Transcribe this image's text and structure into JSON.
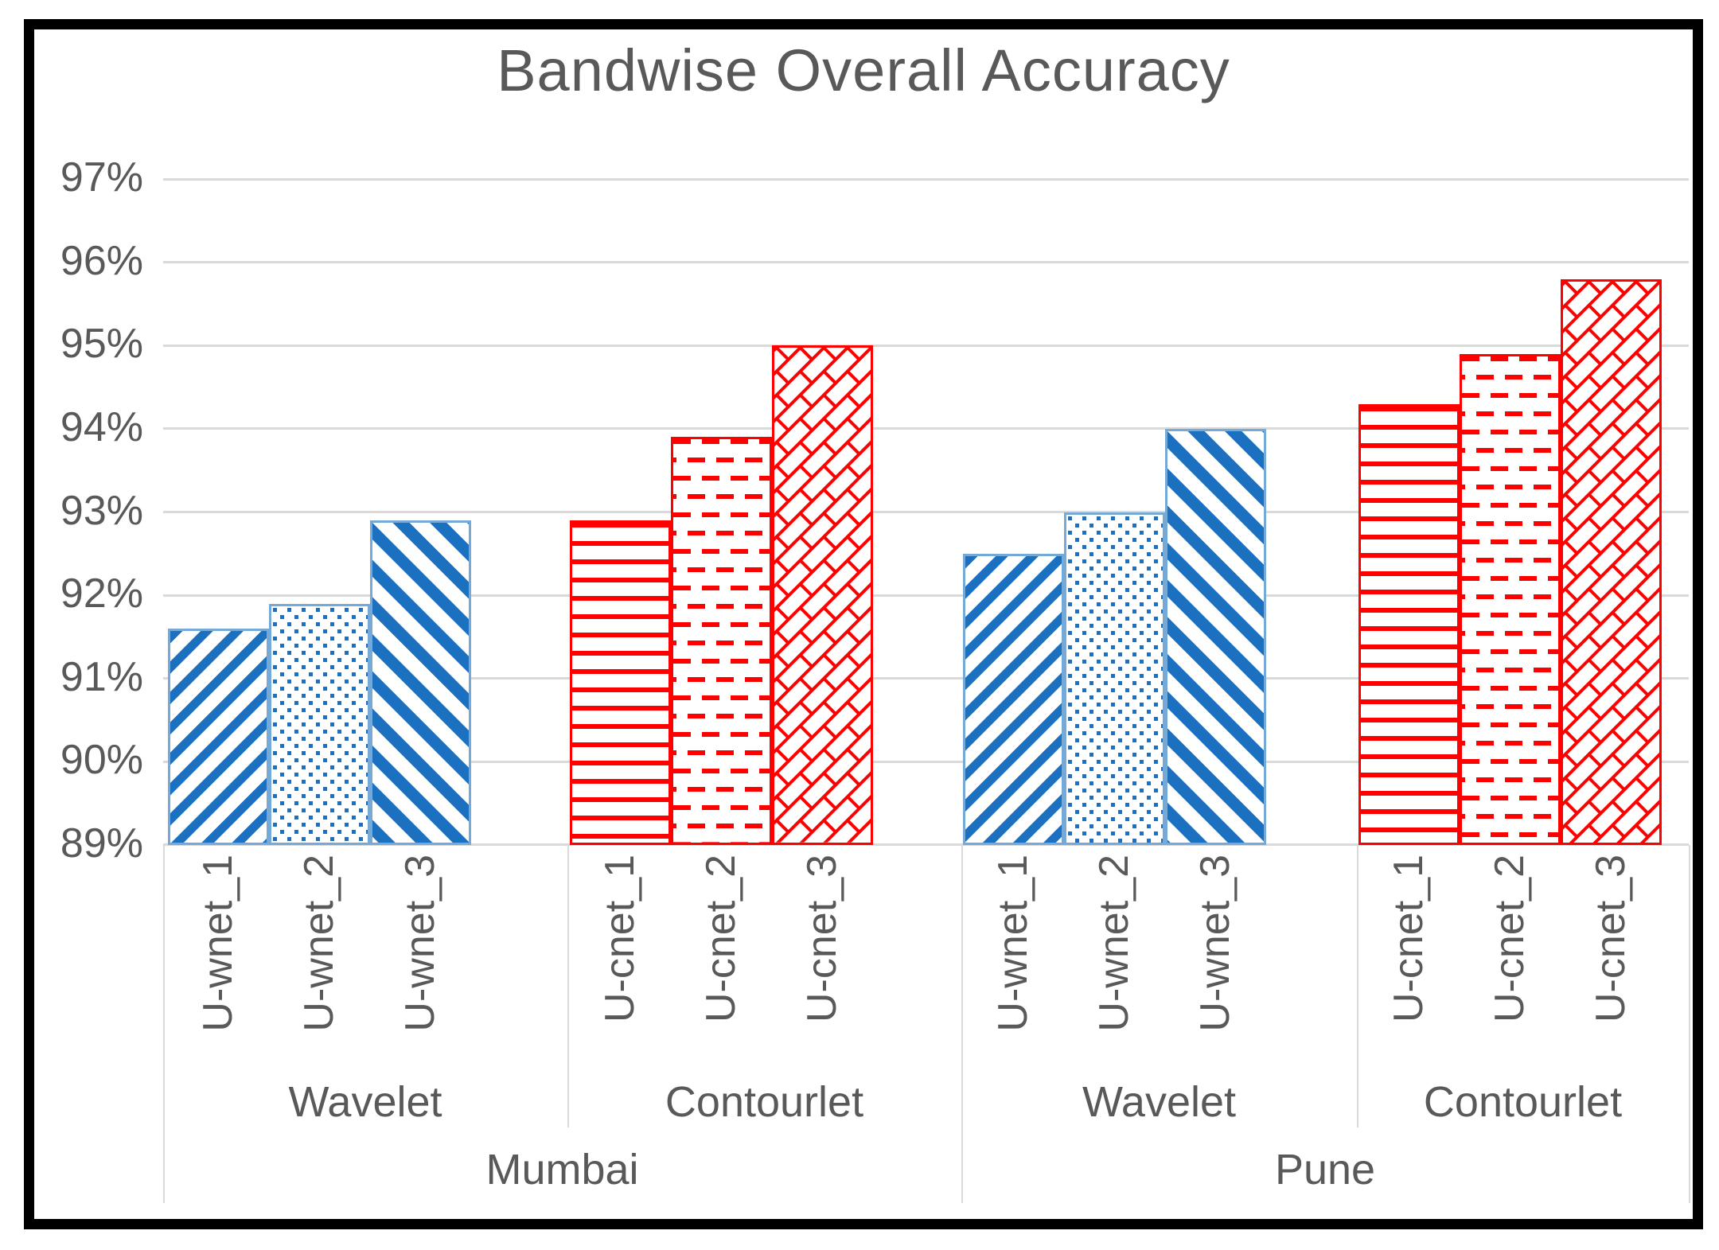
{
  "chart_data": {
    "type": "bar",
    "title": "Bandwise Overall Accuracy",
    "xlabel": "",
    "ylabel": "",
    "ylim": [
      89,
      97.8
    ],
    "grid": true,
    "legend": "none",
    "yticks": [
      {
        "value": 89,
        "label": "89%"
      },
      {
        "value": 90,
        "label": "90%"
      },
      {
        "value": 91,
        "label": "91%"
      },
      {
        "value": 92,
        "label": "92%"
      },
      {
        "value": 93,
        "label": "93%"
      },
      {
        "value": 94,
        "label": "94%"
      },
      {
        "value": 95,
        "label": "95%"
      },
      {
        "value": 96,
        "label": "96%"
      },
      {
        "value": 97,
        "label": "97%"
      }
    ],
    "axis_levels": [
      "model",
      "transform",
      "city"
    ],
    "cities": [
      {
        "name": "Mumbai",
        "sections": [
          {
            "transform": "Wavelet",
            "color_key": "blue",
            "bars": [
              {
                "label": "U-wnet_1",
                "value": 91.6,
                "pattern": "thin-diagonal-up-stripes"
              },
              {
                "label": "U-wnet_2",
                "value": 91.9,
                "pattern": "dot-grid"
              },
              {
                "label": "U-wnet_3",
                "value": 92.9,
                "pattern": "bold-diagonal-down-stripes"
              }
            ]
          },
          {
            "transform": "Contourlet",
            "color_key": "red",
            "bars": [
              {
                "label": "U-cnet_1",
                "value": 92.9,
                "pattern": "horizontal-lines"
              },
              {
                "label": "U-cnet_2",
                "value": 93.9,
                "pattern": "horizontal-dashes"
              },
              {
                "label": "U-cnet_3",
                "value": 95.0,
                "pattern": "diagonal-bricks"
              }
            ]
          }
        ]
      },
      {
        "name": "Pune",
        "sections": [
          {
            "transform": "Wavelet",
            "color_key": "blue",
            "bars": [
              {
                "label": "U-wnet_1",
                "value": 92.5,
                "pattern": "thin-diagonal-up-stripes"
              },
              {
                "label": "U-wnet_2",
                "value": 93.0,
                "pattern": "dot-grid"
              },
              {
                "label": "U-wnet_3",
                "value": 94.0,
                "pattern": "bold-diagonal-down-stripes"
              }
            ]
          },
          {
            "transform": "Contourlet",
            "color_key": "red",
            "bars": [
              {
                "label": "U-cnet_1",
                "value": 94.3,
                "pattern": "horizontal-lines"
              },
              {
                "label": "U-cnet_2",
                "value": 94.9,
                "pattern": "horizontal-dashes"
              },
              {
                "label": "U-cnet_3",
                "value": 95.8,
                "pattern": "diagonal-bricks"
              }
            ]
          }
        ]
      }
    ],
    "colors": {
      "blue": "#1C70C0",
      "blue_border": "#74A9D8",
      "red": "#FF0000",
      "red_border": "#FF0000",
      "gridline": "#D9D9D9",
      "axis_text": "#595959",
      "title_text": "#595959",
      "frame": "#000000",
      "background": "#FFFFFF"
    }
  }
}
